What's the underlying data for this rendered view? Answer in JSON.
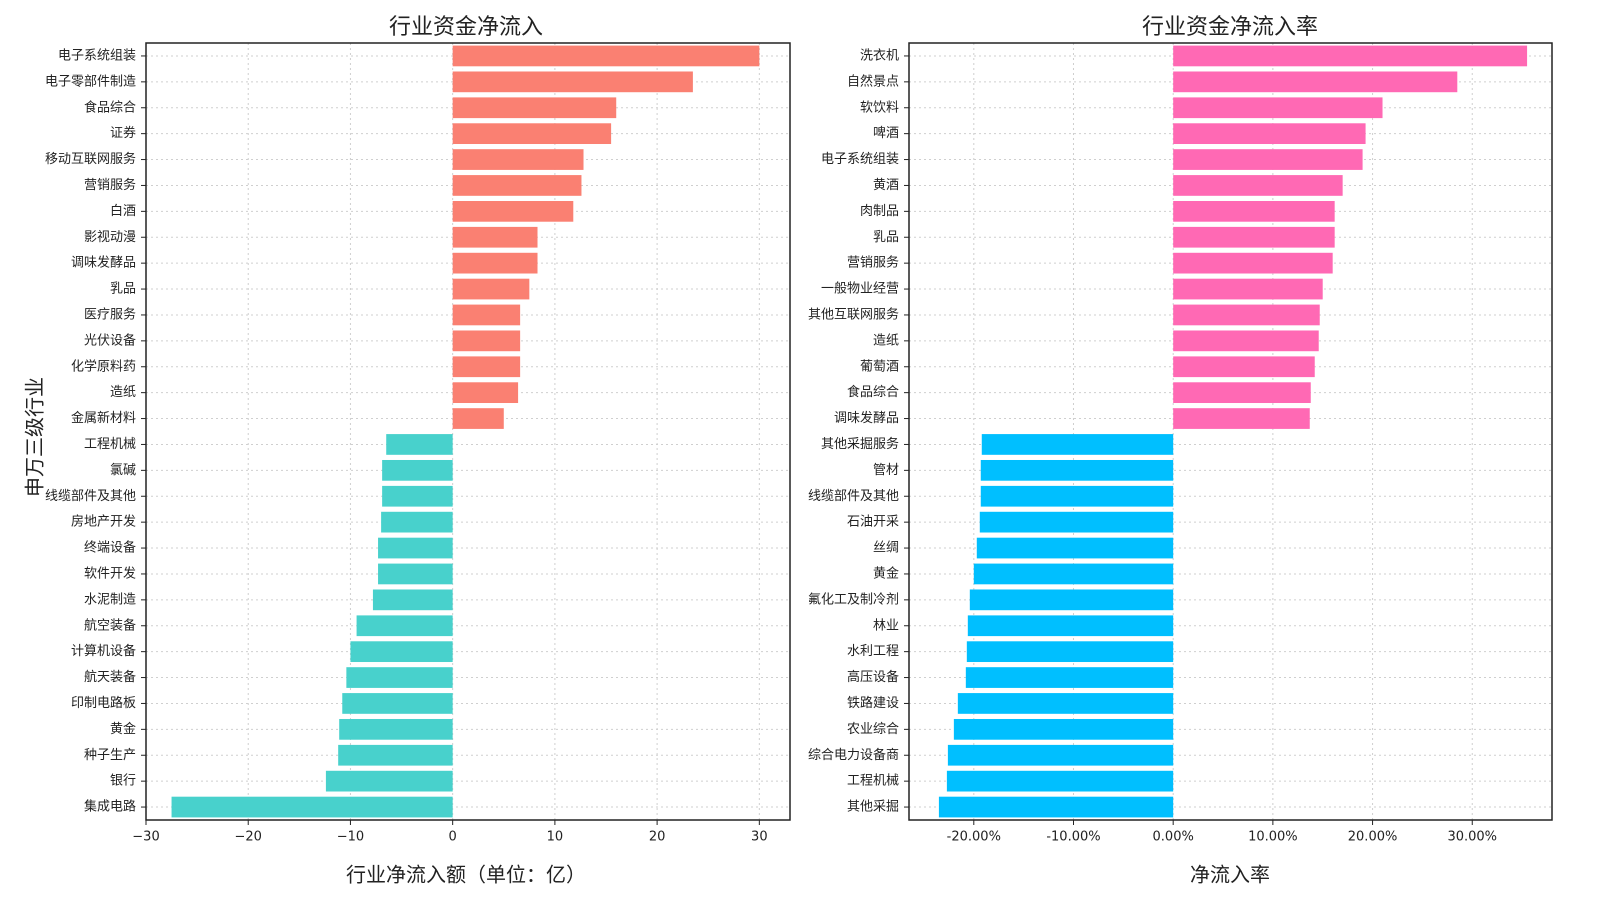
{
  "ylabel_shared": "申万三级行业",
  "chart_data": [
    {
      "type": "bar",
      "orientation": "horizontal",
      "title": "行业资金净流入",
      "xlabel": "行业净流入额（单位：亿）",
      "ylabel": "申万三级行业",
      "xlim": [
        -30,
        33
      ],
      "xticks": [
        -30,
        -20,
        -10,
        0,
        10,
        20,
        30
      ],
      "xtick_labels": [
        "−30",
        "−20",
        "−10",
        "0",
        "10",
        "20",
        "30"
      ],
      "grid": true,
      "positive_color": "#fa8072",
      "negative_color": "#48d1cc",
      "categories": [
        "电子系统组装",
        "电子零部件制造",
        "食品综合",
        "证券",
        "移动互联网服务",
        "营销服务",
        "白酒",
        "影视动漫",
        "调味发酵品",
        "乳品",
        "医疗服务",
        "光伏设备",
        "化学原料药",
        "造纸",
        "金属新材料",
        "工程机械",
        "氯碱",
        "线缆部件及其他",
        "房地产开发",
        "终端设备",
        "软件开发",
        "水泥制造",
        "航空装备",
        "计算机设备",
        "航天装备",
        "印制电路板",
        "黄金",
        "种子生产",
        "银行",
        "集成电路"
      ],
      "values": [
        30.0,
        23.5,
        16.0,
        15.5,
        12.8,
        12.6,
        11.8,
        8.3,
        8.3,
        7.5,
        6.6,
        6.6,
        6.6,
        6.4,
        5.0,
        -6.5,
        -6.9,
        -6.9,
        -7.0,
        -7.3,
        -7.3,
        -7.8,
        -9.4,
        -10.0,
        -10.4,
        -10.8,
        -11.1,
        -11.2,
        -12.4,
        -27.5
      ]
    },
    {
      "type": "bar",
      "orientation": "horizontal",
      "title": "行业资金净流入率",
      "xlabel": "净流入率",
      "xlim": [
        -0.265,
        0.38
      ],
      "xticks": [
        -0.2,
        -0.1,
        0.0,
        0.1,
        0.2,
        0.3
      ],
      "xtick_labels": [
        "-20.00%",
        "-10.00%",
        "0.00%",
        "10.00%",
        "20.00%",
        "30.00%"
      ],
      "grid": true,
      "positive_color": "#ff69b4",
      "negative_color": "#00bfff",
      "categories": [
        "洗衣机",
        "自然景点",
        "软饮料",
        "啤酒",
        "电子系统组装",
        "黄酒",
        "肉制品",
        "乳品",
        "营销服务",
        "一般物业经营",
        "其他互联网服务",
        "造纸",
        "葡萄酒",
        "食品综合",
        "调味发酵品",
        "其他采掘服务",
        "管材",
        "线缆部件及其他",
        "石油开采",
        "丝绸",
        "黄金",
        "氟化工及制冷剂",
        "林业",
        "水利工程",
        "高压设备",
        "铁路建设",
        "农业综合",
        "综合电力设备商",
        "工程机械",
        "其他采掘"
      ],
      "values": [
        0.355,
        0.285,
        0.21,
        0.193,
        0.19,
        0.17,
        0.162,
        0.162,
        0.16,
        0.15,
        0.147,
        0.146,
        0.142,
        0.138,
        0.137,
        -0.192,
        -0.193,
        -0.193,
        -0.194,
        -0.197,
        -0.2,
        -0.204,
        -0.206,
        -0.207,
        -0.208,
        -0.216,
        -0.22,
        -0.226,
        -0.227,
        -0.235
      ]
    }
  ]
}
